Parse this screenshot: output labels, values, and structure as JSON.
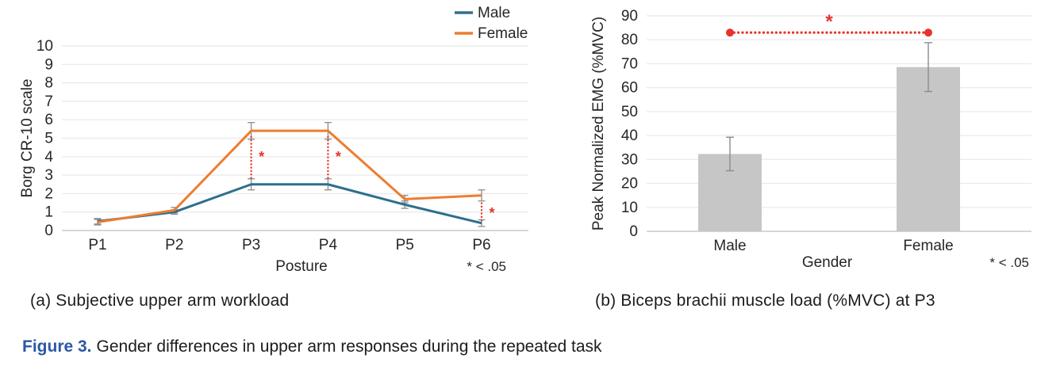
{
  "colors": {
    "male_line": "#2E6F8E",
    "female_line": "#ED7D31",
    "significance_red": "#E5342B",
    "bar_fill": "#C6C6C6",
    "error_bar": "#8C8C8C",
    "grid": "#EBEBEB",
    "axis_line": "#C9C9C9",
    "text": "#262626",
    "caption_blue": "#2B57A7"
  },
  "chart_data": [
    {
      "id": "upper-arm-workload",
      "type": "line",
      "xlabel": "Posture",
      "ylabel": "Borg CR-10 scale",
      "categories": [
        "P1",
        "P2",
        "P3",
        "P4",
        "P5",
        "P6"
      ],
      "ylim": [
        0,
        10
      ],
      "ytick_step": 1,
      "grid": true,
      "legend_position": "top-right",
      "series": [
        {
          "name": "Male",
          "color_key": "male_line",
          "values": [
            0.5,
            1.0,
            2.5,
            2.5,
            1.4,
            0.4
          ],
          "errors": [
            0.15,
            0.12,
            0.3,
            0.3,
            0.2,
            0.18
          ]
        },
        {
          "name": "Female",
          "color_key": "female_line",
          "values": [
            0.45,
            1.1,
            5.4,
            5.4,
            1.7,
            1.9
          ],
          "errors": [
            0.15,
            0.15,
            0.45,
            0.45,
            0.2,
            0.3
          ]
        }
      ],
      "significance_markers": [
        {
          "category": "P3",
          "from": 2.85,
          "to": 5.15,
          "star_at": 4.0,
          "label": "*"
        },
        {
          "category": "P4",
          "from": 2.85,
          "to": 5.15,
          "star_at": 4.0,
          "label": "*"
        },
        {
          "category": "P6",
          "from": 0.55,
          "to": 1.62,
          "star_at": 0.95,
          "label": "*"
        }
      ],
      "footnote": "* < .05"
    },
    {
      "id": "biceps-emg",
      "type": "bar",
      "xlabel": "Gender",
      "ylabel": "Peak Normalized EMG (%MVC)",
      "categories": [
        "Male",
        "Female"
      ],
      "values": [
        32.3,
        68.6
      ],
      "errors": [
        7.0,
        10.2
      ],
      "ylim": [
        0,
        90
      ],
      "ytick_step": 10,
      "grid": true,
      "significance_bracket": {
        "y": 83,
        "from_category": "Male",
        "to_category": "Female",
        "label": "*"
      },
      "footnote": "* < .05"
    }
  ],
  "captions": {
    "left": "(a) Subjective upper arm workload",
    "right": "(b) Biceps brachii muscle load (%MVC) at P3"
  },
  "figure_caption": {
    "label": "Figure 3.",
    "text": "Gender differences in upper arm responses during the repeated task"
  }
}
